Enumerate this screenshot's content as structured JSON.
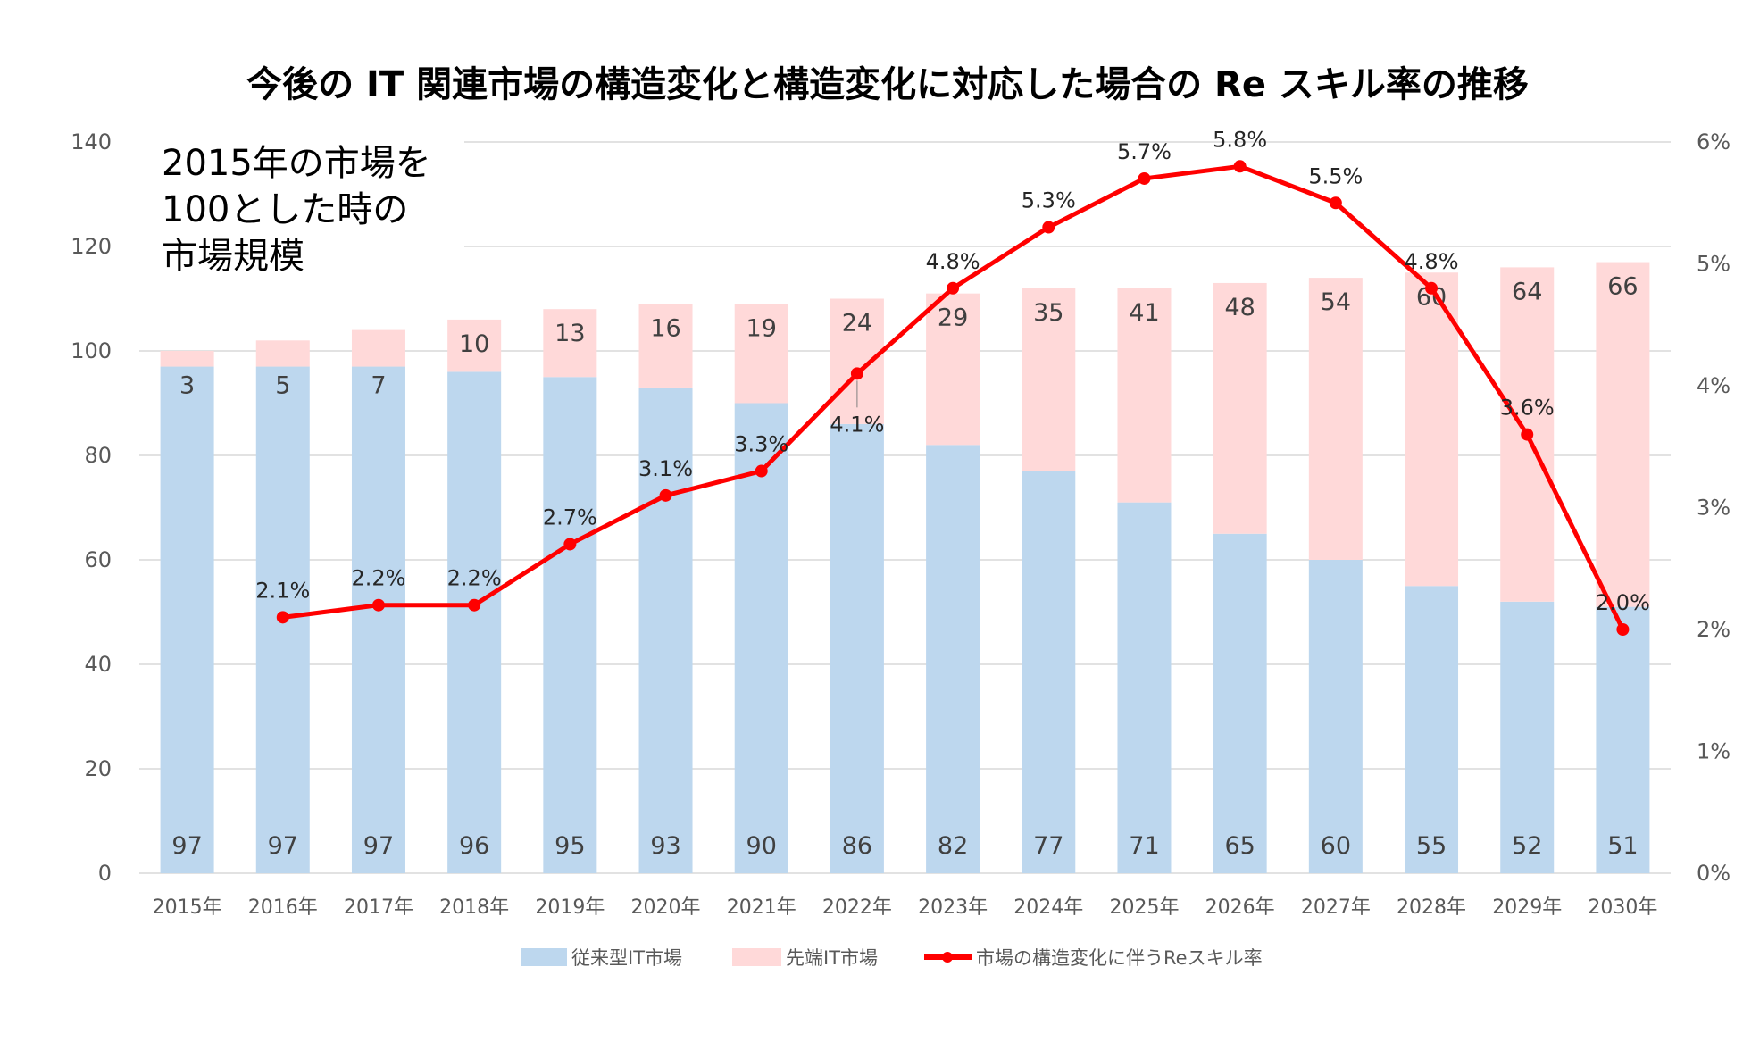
{
  "chart_data": {
    "type": "bar",
    "stacked": true,
    "title": "今後の IT 関連市場の構造変化と構造変化に対応した場合の Re スキル率の推移",
    "annotation": [
      "2015年の市場を",
      "100とした時の",
      "市場規模"
    ],
    "categories": [
      "2015年",
      "2016年",
      "2017年",
      "2018年",
      "2019年",
      "2020年",
      "2021年",
      "2022年",
      "2023年",
      "2024年",
      "2025年",
      "2026年",
      "2027年",
      "2028年",
      "2029年",
      "2030年"
    ],
    "series": [
      {
        "name": "従来型IT市場",
        "type": "bar",
        "axis": "left",
        "color": "#bdd7ee",
        "values": [
          97,
          97,
          97,
          96,
          95,
          93,
          90,
          86,
          82,
          77,
          71,
          65,
          60,
          55,
          52,
          51
        ]
      },
      {
        "name": "先端IT市場",
        "type": "bar",
        "axis": "left",
        "color": "#ffd9d9",
        "values": [
          3,
          5,
          7,
          10,
          13,
          16,
          19,
          24,
          29,
          35,
          41,
          48,
          54,
          60,
          64,
          66
        ]
      },
      {
        "name": "市場の構造変化に伴うReスキル率",
        "type": "line",
        "axis": "right",
        "color": "#ff0000",
        "values": [
          null,
          2.1,
          2.2,
          2.2,
          2.7,
          3.1,
          3.3,
          4.1,
          4.8,
          5.3,
          5.7,
          5.8,
          5.5,
          4.8,
          3.6,
          2.0
        ],
        "labels": [
          "",
          "2.1%",
          "2.2%",
          "2.2%",
          "2.7%",
          "3.1%",
          "3.3%",
          "4.1%",
          "4.8%",
          "5.3%",
          "5.7%",
          "5.8%",
          "5.5%",
          "4.8%",
          "3.6%",
          "2.0%"
        ]
      }
    ],
    "ylim": [
      0,
      140
    ],
    "yticks": [
      "0",
      "20",
      "40",
      "60",
      "80",
      "100",
      "120",
      "140"
    ],
    "y2lim": [
      0,
      6
    ],
    "y2ticks": [
      "0%",
      "1%",
      "2%",
      "3%",
      "4%",
      "5%",
      "6%"
    ],
    "grid": true,
    "legend": "bottom"
  }
}
